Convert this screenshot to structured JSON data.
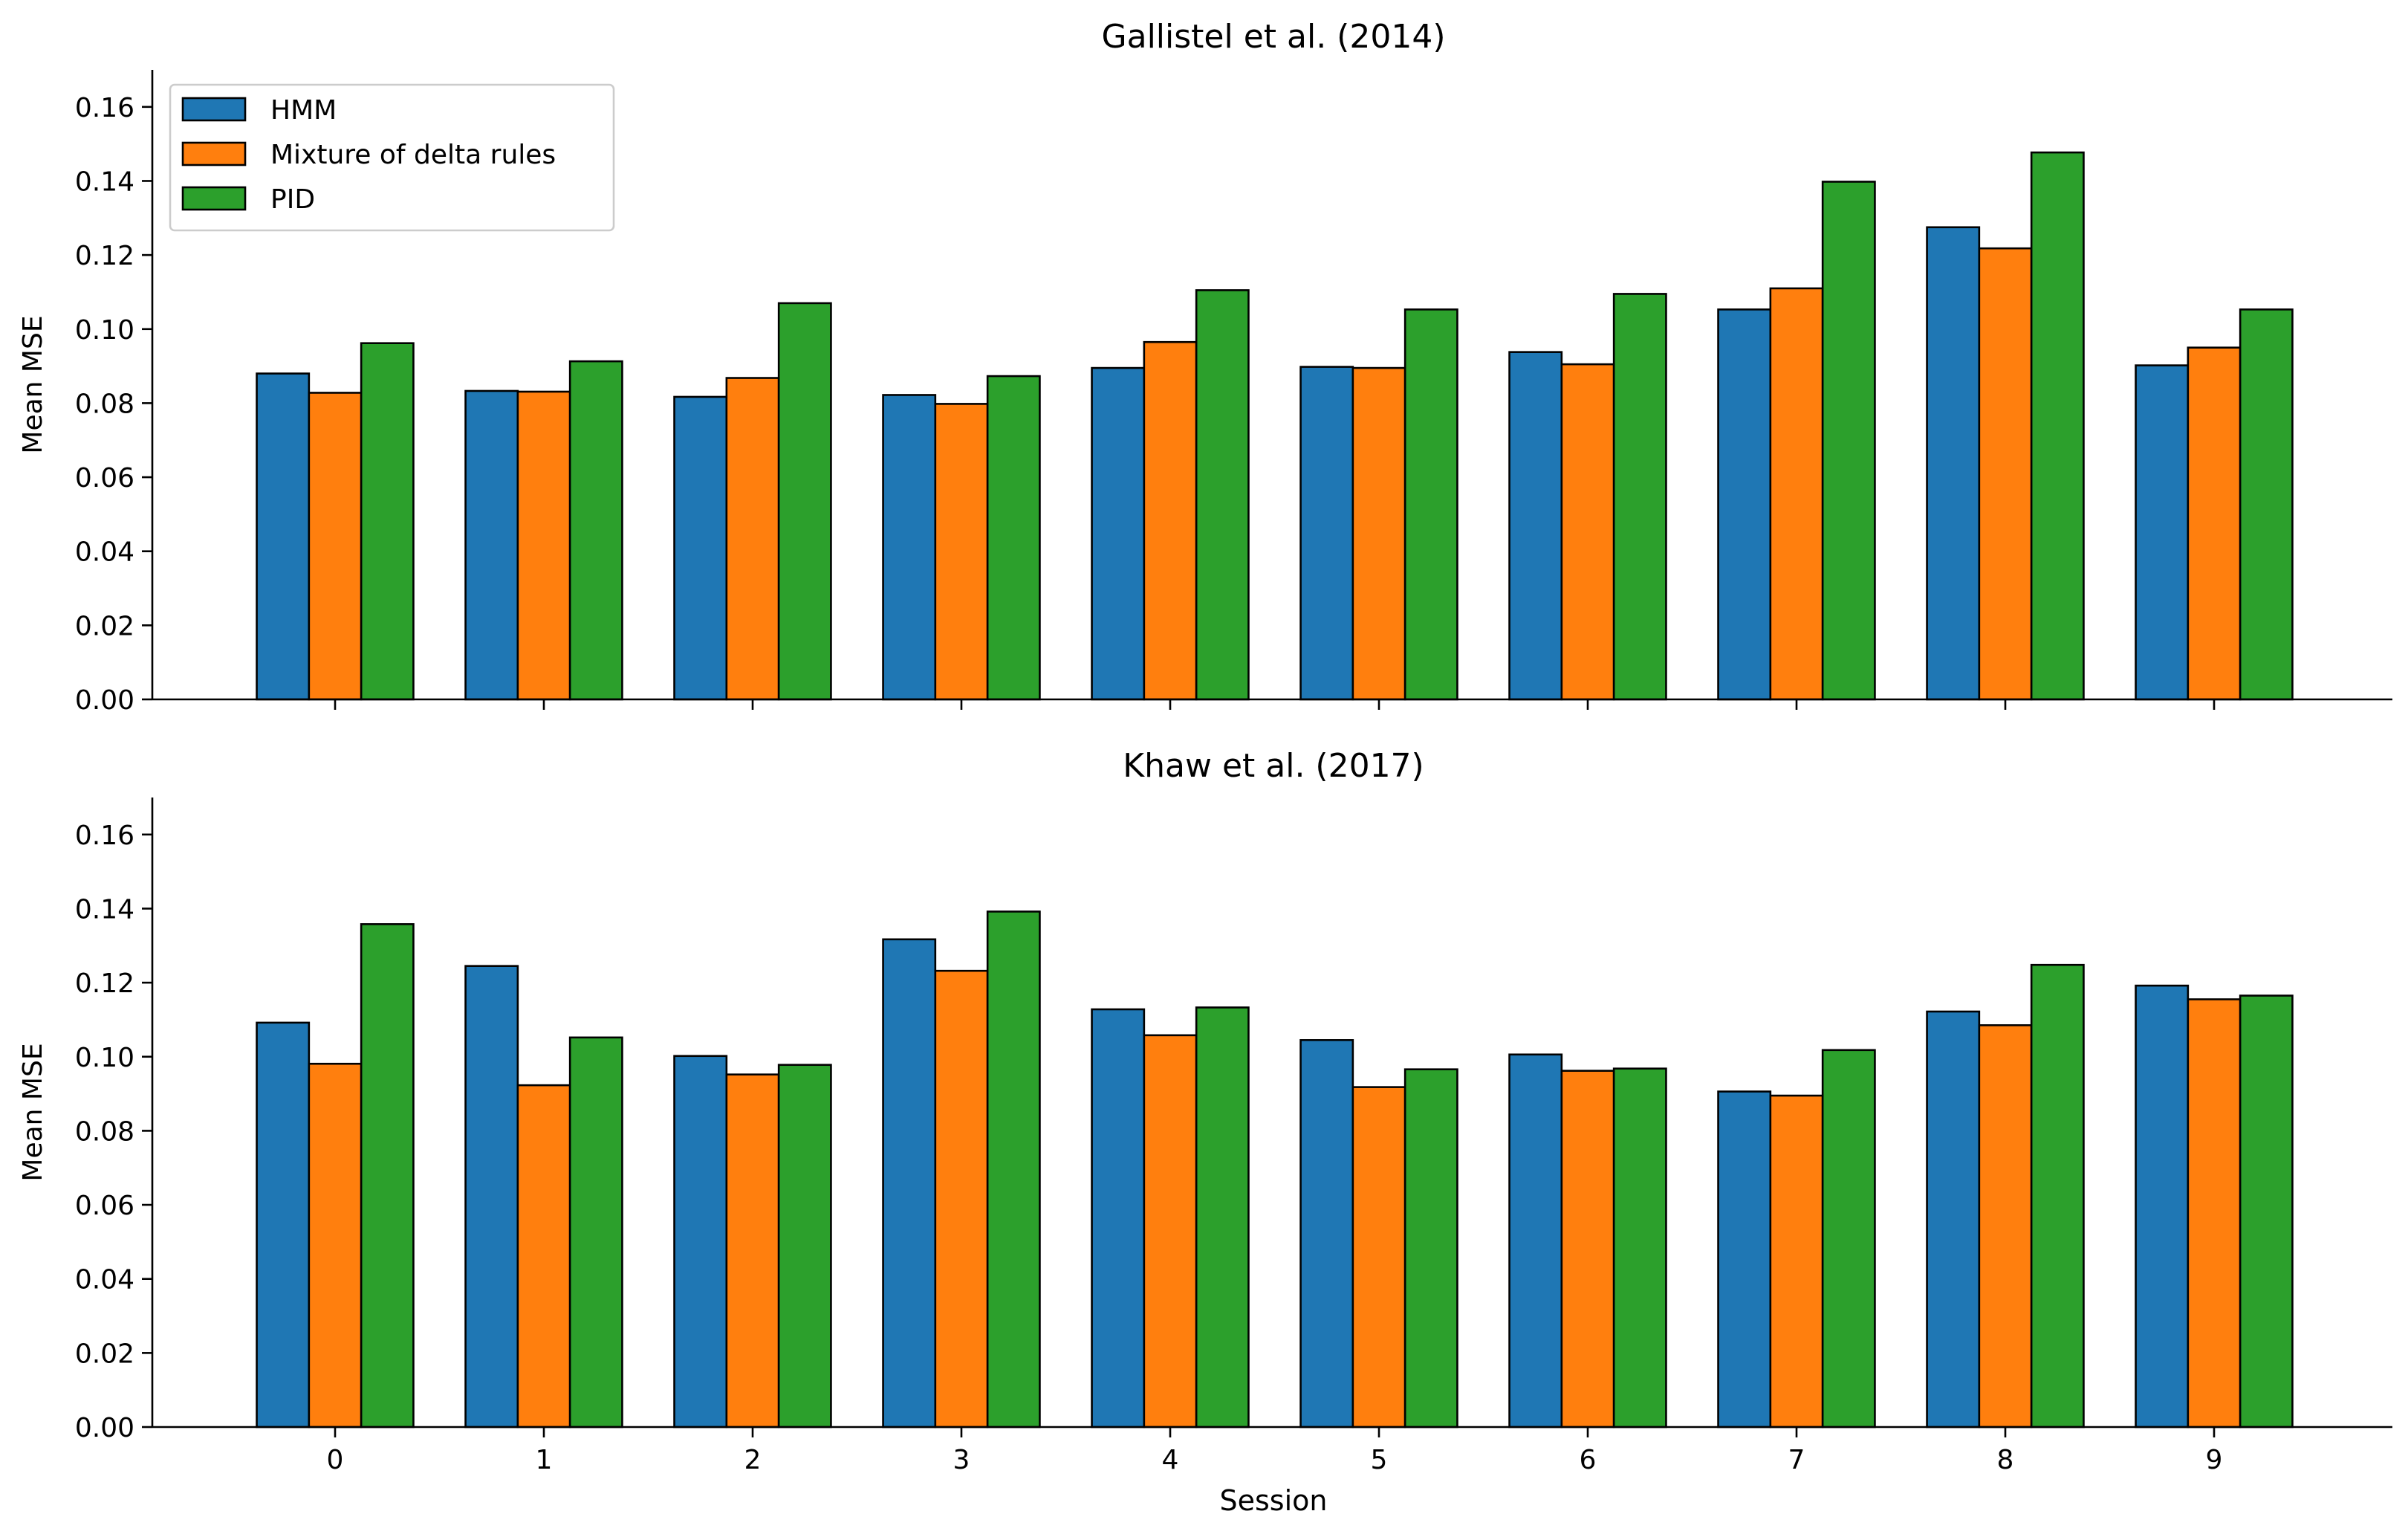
{
  "figure": {
    "xlabel": "Session"
  },
  "legend": {
    "placement": "upper-left",
    "entries": [
      {
        "label": "HMM",
        "color": "#1f77b4"
      },
      {
        "label": "Mixture of delta rules",
        "color": "#ff7f0e"
      },
      {
        "label": "PID",
        "color": "#2ca02c"
      }
    ]
  },
  "chart_data": [
    {
      "type": "bar",
      "title": "Gallistel et al. (2014)",
      "xlabel": "",
      "ylabel": "Mean MSE",
      "categories": [
        "0",
        "1",
        "2",
        "3",
        "4",
        "5",
        "6",
        "7",
        "8",
        "9"
      ],
      "ylim": [
        0,
        0.17
      ],
      "yticks": [
        "0.00",
        "0.02",
        "0.04",
        "0.06",
        "0.08",
        "0.10",
        "0.12",
        "0.14",
        "0.16"
      ],
      "grid": false,
      "series": [
        {
          "name": "HMM",
          "color": "#1f77b4",
          "values": [
            0.088,
            0.0833,
            0.0817,
            0.0822,
            0.0895,
            0.0898,
            0.0938,
            0.1053,
            0.1275,
            0.0902
          ]
        },
        {
          "name": "Mixture of delta rules",
          "color": "#ff7f0e",
          "values": [
            0.0828,
            0.0831,
            0.0868,
            0.0798,
            0.0965,
            0.0895,
            0.0905,
            0.111,
            0.1218,
            0.095
          ]
        },
        {
          "name": "PID",
          "color": "#2ca02c",
          "values": [
            0.0962,
            0.0913,
            0.107,
            0.0873,
            0.1105,
            0.1053,
            0.1095,
            0.1398,
            0.1477,
            0.1053
          ]
        }
      ]
    },
    {
      "type": "bar",
      "title": "Khaw et al. (2017)",
      "xlabel": "Session",
      "ylabel": "Mean MSE",
      "categories": [
        "0",
        "1",
        "2",
        "3",
        "4",
        "5",
        "6",
        "7",
        "8",
        "9"
      ],
      "ylim": [
        0,
        0.17
      ],
      "yticks": [
        "0.00",
        "0.02",
        "0.04",
        "0.06",
        "0.08",
        "0.10",
        "0.12",
        "0.14",
        "0.16"
      ],
      "grid": false,
      "series": [
        {
          "name": "HMM",
          "color": "#1f77b4",
          "values": [
            0.1092,
            0.1245,
            0.1002,
            0.1317,
            0.1128,
            0.1045,
            0.1006,
            0.0906,
            0.1122,
            0.1192
          ]
        },
        {
          "name": "Mixture of delta rules",
          "color": "#ff7f0e",
          "values": [
            0.0981,
            0.0923,
            0.0952,
            0.1232,
            0.1058,
            0.0918,
            0.0962,
            0.0895,
            0.1085,
            0.1155
          ]
        },
        {
          "name": "PID",
          "color": "#2ca02c",
          "values": [
            0.1358,
            0.1052,
            0.0978,
            0.1392,
            0.1133,
            0.0966,
            0.0968,
            0.1018,
            0.1248,
            0.1165
          ]
        }
      ]
    }
  ]
}
